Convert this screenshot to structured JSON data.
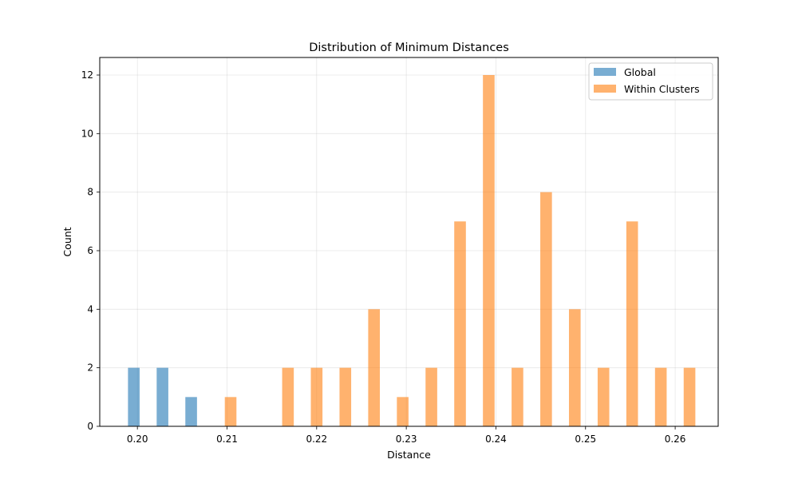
{
  "chart_data": {
    "type": "bar",
    "title": "Distribution of Minimum Distances",
    "xlabel": "Distance",
    "ylabel": "Count",
    "xlim": [
      0.1958,
      0.2648
    ],
    "ylim": [
      0,
      12.6
    ],
    "xticks": [
      0.2,
      0.21,
      0.22,
      0.23,
      0.24,
      0.25,
      0.26
    ],
    "xtick_labels": [
      "0.20",
      "0.21",
      "0.22",
      "0.23",
      "0.24",
      "0.25",
      "0.26"
    ],
    "yticks": [
      0,
      2,
      4,
      6,
      8,
      10,
      12
    ],
    "ytick_labels": [
      "0",
      "2",
      "4",
      "6",
      "8",
      "10",
      "12"
    ],
    "bar_width": 0.0013,
    "grid": true,
    "legend_position": "top-right",
    "series": [
      {
        "name": "Global",
        "color": "#1f77b4",
        "opacity": 0.6,
        "bars": [
          {
            "x": 0.1996,
            "y": 2
          },
          {
            "x": 0.2028,
            "y": 2
          },
          {
            "x": 0.206,
            "y": 1
          }
        ]
      },
      {
        "name": "Within Clusters",
        "color": "#ff7f0e",
        "opacity": 0.6,
        "bars": [
          {
            "x": 0.2104,
            "y": 1
          },
          {
            "x": 0.2168,
            "y": 2
          },
          {
            "x": 0.22,
            "y": 2
          },
          {
            "x": 0.2232,
            "y": 2
          },
          {
            "x": 0.2264,
            "y": 4
          },
          {
            "x": 0.2296,
            "y": 1
          },
          {
            "x": 0.2328,
            "y": 2
          },
          {
            "x": 0.236,
            "y": 7
          },
          {
            "x": 0.2392,
            "y": 12
          },
          {
            "x": 0.2424,
            "y": 2
          },
          {
            "x": 0.2456,
            "y": 8
          },
          {
            "x": 0.2488,
            "y": 4
          },
          {
            "x": 0.252,
            "y": 2
          },
          {
            "x": 0.2552,
            "y": 7
          },
          {
            "x": 0.2584,
            "y": 2
          },
          {
            "x": 0.2616,
            "y": 2
          }
        ]
      }
    ]
  }
}
